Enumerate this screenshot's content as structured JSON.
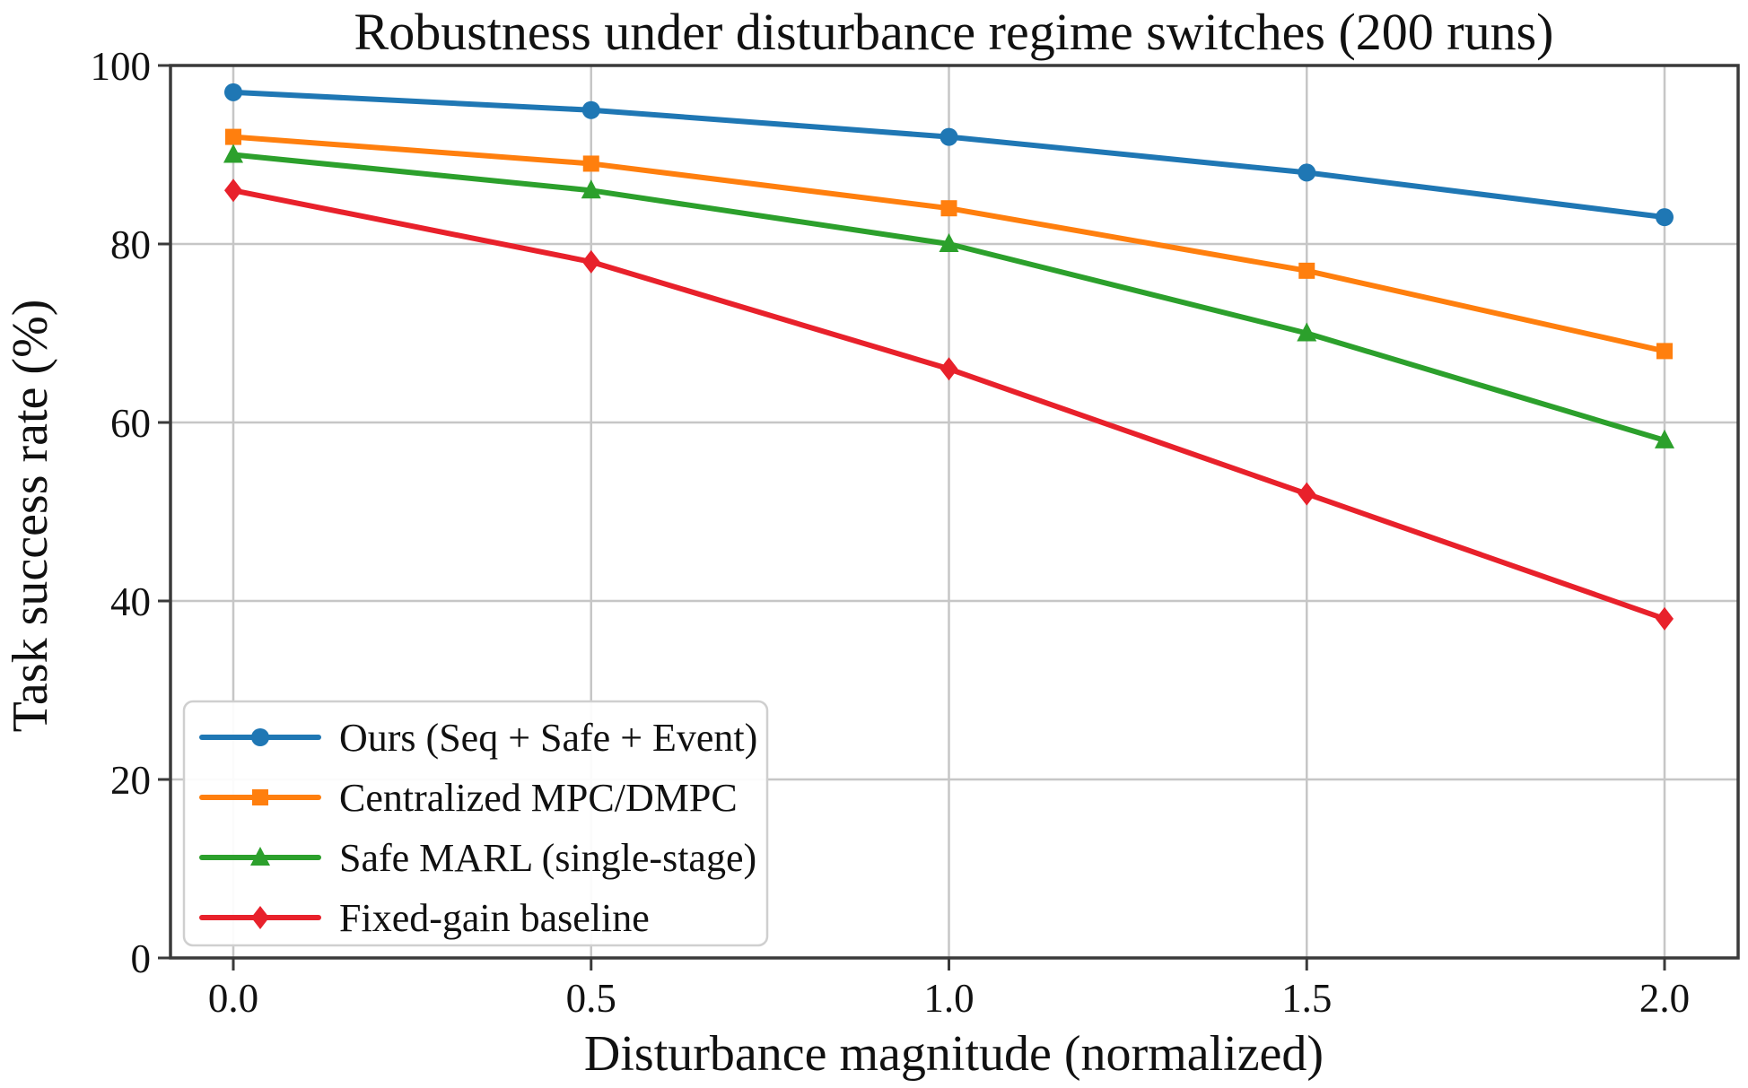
{
  "chart_data": {
    "type": "line",
    "title": "Robustness under disturbance regime switches (200 runs)",
    "xlabel": "Disturbance magnitude (normalized)",
    "ylabel": "Task success rate (%)",
    "x": [
      0.0,
      0.5,
      1.0,
      1.5,
      2.0
    ],
    "xtick_labels": [
      "0.0",
      "0.5",
      "1.0",
      "1.5",
      "2.0"
    ],
    "yticks": [
      0,
      20,
      40,
      60,
      80,
      100
    ],
    "ytick_labels": [
      "0",
      "20",
      "40",
      "60",
      "80",
      "100"
    ],
    "ylim": [
      0,
      100
    ],
    "grid": true,
    "legend_position": "lower-left",
    "series": [
      {
        "name": "Ours (Seq + Safe + Event)",
        "color": "#1f77b4",
        "marker": "circle",
        "values": [
          97,
          95,
          92,
          88,
          83
        ]
      },
      {
        "name": "Centralized MPC/DMPC",
        "color": "#ff7f0e",
        "marker": "square",
        "values": [
          92,
          89,
          84,
          77,
          68
        ]
      },
      {
        "name": "Safe MARL (single-stage)",
        "color": "#2ca02c",
        "marker": "triangle",
        "values": [
          90,
          86,
          80,
          70,
          58
        ]
      },
      {
        "name": "Fixed-gain baseline",
        "color": "#e8212b",
        "marker": "diamond",
        "values": [
          86,
          78,
          66,
          52,
          38
        ]
      }
    ]
  }
}
